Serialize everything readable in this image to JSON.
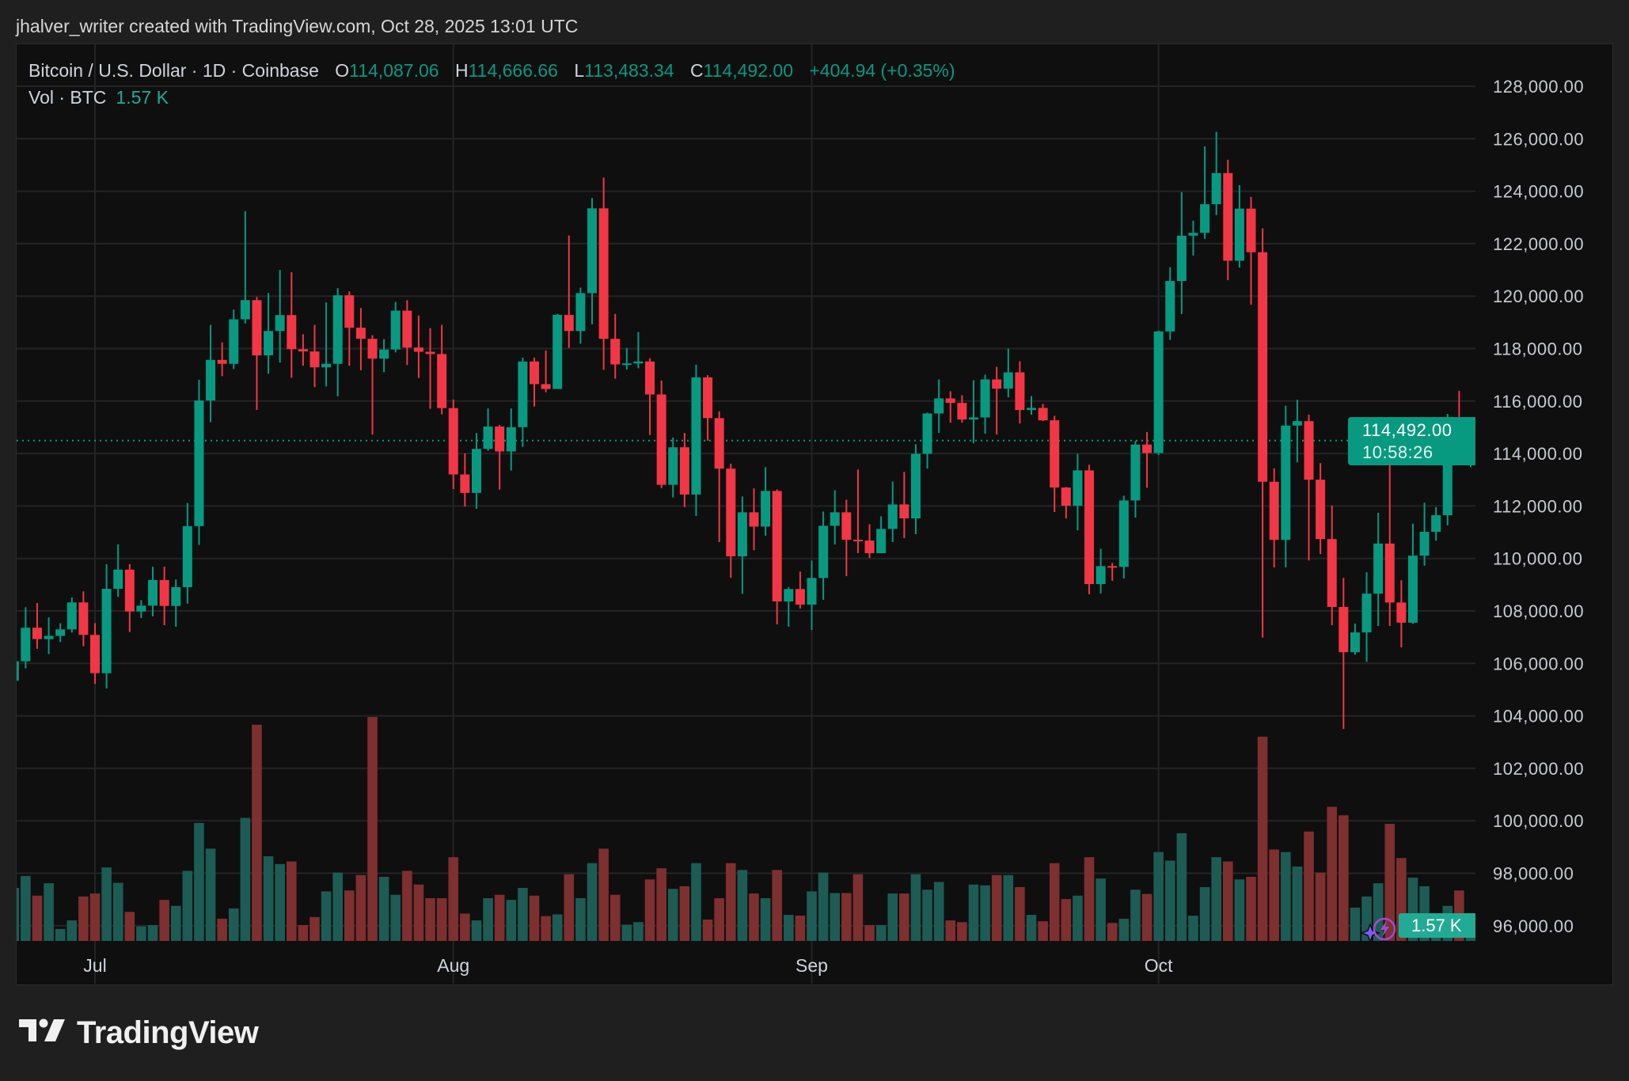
{
  "header": {
    "attribution": "jhalver_writer created with TradingView.com, Oct 28, 2025 13:01 UTC"
  },
  "legend": {
    "symbol": "Bitcoin / U.S. Dollar · 1D · Coinbase",
    "open_label": "O",
    "open": "114,087.06",
    "high_label": "H",
    "high": "114,666.66",
    "low_label": "L",
    "low": "113,483.34",
    "close_label": "C",
    "close": "114,492.00",
    "change": "+404.94 (+0.35%)",
    "volume_label": "Vol · BTC",
    "volume": "1.57 K"
  },
  "price_label": {
    "price": "114,492.00",
    "countdown": "10:58:26"
  },
  "volume_label": "1.57 K",
  "branding": {
    "logo_text": "TradingView"
  },
  "colors": {
    "up": "#089981",
    "down": "#f23645",
    "vol_up": "#1d5c55",
    "vol_down": "#7e2f30",
    "background": "#0f0f0f",
    "grid": "#242424"
  },
  "icons": [
    "sparkle-icon",
    "lightning-icon",
    "tradingview-logo-icon"
  ],
  "chart_data": {
    "type": "candlestick",
    "title": "",
    "timeframe": "1D",
    "volume_unit": "K BTC",
    "y_tick_labels": [
      "128,000.00",
      "126,000.00",
      "124,000.00",
      "122,000.00",
      "120,000.00",
      "118,000.00",
      "116,000.00",
      "114,000.00",
      "112,000.00",
      "110,000.00",
      "108,000.00",
      "106,000.00",
      "104,000.00",
      "102,000.00",
      "100,000.00",
      "98,000.00",
      "96,000.00"
    ],
    "ylim": [
      95500,
      128800
    ],
    "x_tick_labels": [
      {
        "label": "Jul",
        "date": "2025-07-01"
      },
      {
        "label": "Aug",
        "date": "2025-08-01"
      },
      {
        "label": "Sep",
        "date": "2025-09-01"
      },
      {
        "label": "Oct",
        "date": "2025-10-01"
      }
    ],
    "grid": true,
    "last_price": 114492,
    "columns": [
      "date",
      "open",
      "high",
      "low",
      "close",
      "volume"
    ],
    "candles": [
      [
        "2025-06-24",
        105340,
        106100,
        105300,
        106080,
        6.2
      ],
      [
        "2025-06-25",
        106080,
        108140,
        105810,
        107360,
        7.6
      ],
      [
        "2025-06-26",
        107360,
        108300,
        106555,
        106926,
        5.3
      ],
      [
        "2025-06-27",
        106926,
        107755,
        106357,
        107050,
        6.75
      ],
      [
        "2025-06-28",
        107050,
        107532,
        106815,
        107297,
        1.4
      ],
      [
        "2025-06-29",
        107297,
        108510,
        107174,
        108325,
        2.4
      ],
      [
        "2025-06-30",
        108325,
        108745,
        106654,
        107087,
        5.2
      ],
      [
        "2025-07-01",
        107087,
        107532,
        105218,
        105627,
        5.55
      ],
      [
        "2025-07-02",
        105627,
        109785,
        105045,
        108844,
        8.6
      ],
      [
        "2025-07-03",
        108844,
        110540,
        108535,
        109575,
        6.8
      ],
      [
        "2025-07-04",
        109575,
        109785,
        107198,
        107978,
        3.4
      ],
      [
        "2025-07-05",
        107978,
        108411,
        107730,
        108201,
        1.7
      ],
      [
        "2025-07-06",
        108201,
        109686,
        107792,
        109178,
        1.85
      ],
      [
        "2025-07-07",
        109178,
        109686,
        107458,
        108190,
        4.8
      ],
      [
        "2025-07-08",
        108190,
        109203,
        107397,
        108906,
        4.1
      ],
      [
        "2025-07-09",
        108906,
        112112,
        108275,
        111233,
        8.2
      ],
      [
        "2025-07-10",
        111233,
        116814,
        110515,
        116022,
        13.8
      ],
      [
        "2025-07-11",
        116022,
        118906,
        115193,
        117569,
        10.8
      ],
      [
        "2025-07-12",
        117569,
        118238,
        116951,
        117421,
        2.6
      ],
      [
        "2025-07-13",
        117421,
        119488,
        117223,
        119116,
        3.8
      ],
      [
        "2025-07-14",
        119116,
        123238,
        118956,
        119847,
        14.4
      ],
      [
        "2025-07-15",
        119847,
        119970,
        115663,
        117743,
        25.3
      ],
      [
        "2025-07-16",
        117743,
        120119,
        117037,
        118671,
        9.9
      ],
      [
        "2025-07-17",
        118671,
        120998,
        117470,
        119277,
        9.0
      ],
      [
        "2025-07-18",
        119277,
        120911,
        116889,
        117978,
        9.3
      ],
      [
        "2025-07-19",
        117978,
        118547,
        117347,
        117891,
        1.85
      ],
      [
        "2025-07-20",
        117891,
        118906,
        116530,
        117285,
        2.8
      ],
      [
        "2025-07-21",
        117285,
        119760,
        116555,
        117421,
        5.8
      ],
      [
        "2025-07-22",
        117421,
        120305,
        116183,
        120032,
        8.0
      ],
      [
        "2025-07-23",
        120032,
        120181,
        117347,
        118795,
        5.9
      ],
      [
        "2025-07-24",
        118795,
        119550,
        117173,
        118374,
        7.7
      ],
      [
        "2025-07-25",
        118374,
        118510,
        114723,
        117619,
        26.2
      ],
      [
        "2025-07-26",
        117619,
        118361,
        117099,
        117965,
        7.5
      ],
      [
        "2025-07-27",
        117965,
        119780,
        117855,
        119447,
        5.4
      ],
      [
        "2025-07-28",
        119447,
        119841,
        117373,
        118040,
        8.2
      ],
      [
        "2025-07-29",
        118040,
        119261,
        116880,
        117879,
        6.6
      ],
      [
        "2025-07-30",
        117879,
        118780,
        115708,
        117793,
        5.0
      ],
      [
        "2025-07-31",
        117793,
        118904,
        115498,
        115732,
        5.0
      ],
      [
        "2025-08-01",
        115732,
        116053,
        112647,
        113202,
        9.8
      ],
      [
        "2025-08-02",
        113202,
        114005,
        111980,
        112499,
        3.2
      ],
      [
        "2025-08-03",
        112499,
        114782,
        111895,
        114177,
        2.4
      ],
      [
        "2025-08-04",
        114177,
        115720,
        114103,
        115029,
        5.0
      ],
      [
        "2025-08-05",
        115029,
        115090,
        112622,
        114079,
        5.4
      ],
      [
        "2025-08-06",
        114079,
        115720,
        113350,
        115004,
        4.8
      ],
      [
        "2025-08-07",
        115004,
        117657,
        114251,
        117509,
        6.2
      ],
      [
        "2025-08-08",
        117509,
        117657,
        115794,
        116645,
        5.3
      ],
      [
        "2025-08-09",
        116645,
        117929,
        116337,
        116460,
        2.9
      ],
      [
        "2025-08-10",
        116460,
        119323,
        116460,
        119286,
        3.1
      ],
      [
        "2025-08-11",
        119286,
        122309,
        118027,
        118669,
        7.8
      ],
      [
        "2025-08-12",
        118669,
        120323,
        118188,
        120113,
        5.0
      ],
      [
        "2025-08-13",
        120113,
        123741,
        118928,
        123346,
        9.1
      ],
      [
        "2025-08-14",
        123346,
        124518,
        117188,
        118373,
        10.8
      ],
      [
        "2025-08-15",
        118373,
        119323,
        116855,
        117398,
        5.4
      ],
      [
        "2025-08-16",
        117398,
        118027,
        117201,
        117435,
        1.9
      ],
      [
        "2025-08-17",
        117435,
        118632,
        117250,
        117509,
        2.2
      ],
      [
        "2025-08-18",
        117509,
        117632,
        114708,
        116250,
        7.2
      ],
      [
        "2025-08-19",
        116250,
        116781,
        112684,
        112808,
        8.5
      ],
      [
        "2025-08-20",
        112808,
        114609,
        112326,
        114239,
        6.1
      ],
      [
        "2025-08-21",
        114239,
        114782,
        111956,
        112437,
        6.4
      ],
      [
        "2025-08-22",
        112437,
        117386,
        111623,
        116904,
        9.1
      ],
      [
        "2025-08-23",
        116904,
        116991,
        114486,
        115350,
        2.5
      ],
      [
        "2025-08-24",
        115350,
        115609,
        110623,
        113425,
        5.0
      ],
      [
        "2025-08-25",
        113425,
        113610,
        109266,
        110080,
        9.1
      ],
      [
        "2025-08-26",
        110080,
        112363,
        108649,
        111759,
        8.3
      ],
      [
        "2025-08-27",
        111759,
        112672,
        110315,
        111215,
        5.55
      ],
      [
        "2025-08-28",
        111215,
        113477,
        110864,
        112573,
        5.0
      ],
      [
        "2025-08-29",
        112573,
        112633,
        107488,
        108362,
        8.3
      ],
      [
        "2025-08-30",
        108362,
        108915,
        107397,
        108834,
        3.05
      ],
      [
        "2025-08-31",
        108834,
        109498,
        108090,
        108241,
        2.96
      ],
      [
        "2025-09-01",
        108241,
        109920,
        107277,
        109256,
        5.8
      ],
      [
        "2025-09-02",
        109256,
        111789,
        108422,
        111246,
        8.0
      ],
      [
        "2025-09-03",
        111246,
        112603,
        110533,
        111759,
        5.6
      ],
      [
        "2025-09-04",
        111759,
        112241,
        109327,
        110714,
        5.6
      ],
      [
        "2025-09-05",
        110714,
        113387,
        110201,
        110684,
        7.8
      ],
      [
        "2025-09-06",
        110684,
        111307,
        110020,
        110201,
        1.85
      ],
      [
        "2025-09-07",
        110201,
        111608,
        110201,
        111126,
        1.85
      ],
      [
        "2025-09-08",
        111126,
        112935,
        110623,
        112060,
        5.55
      ],
      [
        "2025-09-09",
        112060,
        113297,
        110774,
        111528,
        5.55
      ],
      [
        "2025-09-10",
        111528,
        114352,
        110925,
        113990,
        7.8
      ],
      [
        "2025-09-11",
        113990,
        115558,
        113427,
        115528,
        6.0
      ],
      [
        "2025-09-12",
        115528,
        116824,
        114784,
        116101,
        6.9
      ],
      [
        "2025-09-13",
        116101,
        116372,
        115176,
        115930,
        2.4
      ],
      [
        "2025-09-14",
        115930,
        116221,
        115176,
        115297,
        2.2
      ],
      [
        "2025-09-15",
        115297,
        116794,
        114392,
        115377,
        6.6
      ],
      [
        "2025-09-16",
        115377,
        117005,
        114754,
        116824,
        6.5
      ],
      [
        "2025-09-17",
        116824,
        117307,
        114724,
        116472,
        7.7
      ],
      [
        "2025-09-18",
        116472,
        118000,
        116141,
        117095,
        7.7
      ],
      [
        "2025-09-19",
        117095,
        117518,
        115146,
        115658,
        6.3
      ],
      [
        "2025-09-20",
        115658,
        116191,
        115477,
        115739,
        3.05
      ],
      [
        "2025-09-21",
        115739,
        115889,
        115236,
        115266,
        2.3
      ],
      [
        "2025-09-22",
        115266,
        115437,
        111769,
        112704,
        9.1
      ],
      [
        "2025-09-23",
        112704,
        112724,
        111528,
        112010,
        4.9
      ],
      [
        "2025-09-24",
        112010,
        113990,
        111075,
        113357,
        5.3
      ],
      [
        "2025-09-25",
        113357,
        113568,
        108633,
        109025,
        9.8
      ],
      [
        "2025-09-26",
        109025,
        110372,
        108663,
        109709,
        7.3
      ],
      [
        "2025-09-27",
        109709,
        109829,
        109146,
        109680,
        2.1
      ],
      [
        "2025-09-28",
        109680,
        112392,
        109236,
        112211,
        2.6
      ],
      [
        "2025-09-29",
        112211,
        114481,
        111555,
        114342,
        6.0
      ],
      [
        "2025-09-30",
        114342,
        114820,
        112694,
        114019,
        5.5
      ],
      [
        "2025-10-01",
        114019,
        118685,
        113942,
        118654,
        10.4
      ],
      [
        "2025-10-02",
        118654,
        121103,
        118331,
        120579,
        9.4
      ],
      [
        "2025-10-03",
        120579,
        123967,
        119316,
        122304,
        12.6
      ],
      [
        "2025-10-04",
        122304,
        122874,
        121549,
        122412,
        2.96
      ],
      [
        "2025-10-05",
        122412,
        125707,
        122181,
        123505,
        6.3
      ],
      [
        "2025-10-06",
        123505,
        126262,
        123089,
        124691,
        9.8
      ],
      [
        "2025-10-07",
        124691,
        125199,
        120610,
        121349,
        9.3
      ],
      [
        "2025-10-08",
        121349,
        124229,
        121087,
        123336,
        7.2
      ],
      [
        "2025-10-09",
        123336,
        123782,
        119671,
        121673,
        7.5
      ],
      [
        "2025-10-10",
        121673,
        122581,
        106981,
        112925,
        23.9
      ],
      [
        "2025-10-11",
        112925,
        113434,
        109661,
        110708,
        10.7
      ],
      [
        "2025-10-12",
        110708,
        115821,
        109661,
        115066,
        10.4
      ],
      [
        "2025-10-13",
        115066,
        116052,
        113665,
        115235,
        8.7
      ],
      [
        "2025-10-14",
        115235,
        115482,
        109922,
        113002,
        12.8
      ],
      [
        "2025-10-15",
        113002,
        113634,
        110169,
        110739,
        8.0
      ],
      [
        "2025-10-16",
        110739,
        112017,
        107458,
        108151,
        15.7
      ],
      [
        "2025-10-17",
        108151,
        109260,
        103501,
        106427,
        14.7
      ],
      [
        "2025-10-18",
        106427,
        107520,
        106334,
        107181,
        3.9
      ],
      [
        "2025-10-19",
        107181,
        109476,
        106057,
        108660,
        5.2
      ],
      [
        "2025-10-20",
        108660,
        111740,
        107428,
        110569,
        6.75
      ],
      [
        "2025-10-21",
        110569,
        114065,
        107428,
        108321,
        13.7
      ],
      [
        "2025-10-22",
        108321,
        109168,
        106611,
        107551,
        9.7
      ],
      [
        "2025-10-23",
        107551,
        111324,
        107505,
        110107,
        7.4
      ],
      [
        "2025-10-24",
        110107,
        112125,
        109722,
        111016,
        6.4
      ],
      [
        "2025-10-25",
        111016,
        111955,
        110677,
        111647,
        1.7
      ],
      [
        "2025-10-26",
        111647,
        115513,
        111262,
        114512,
        4.1
      ],
      [
        "2025-10-27",
        114512,
        116390,
        113819,
        114087.06,
        5.9
      ],
      [
        "2025-10-28",
        114087.06,
        114666.66,
        113483.34,
        114492,
        1.57
      ]
    ]
  }
}
